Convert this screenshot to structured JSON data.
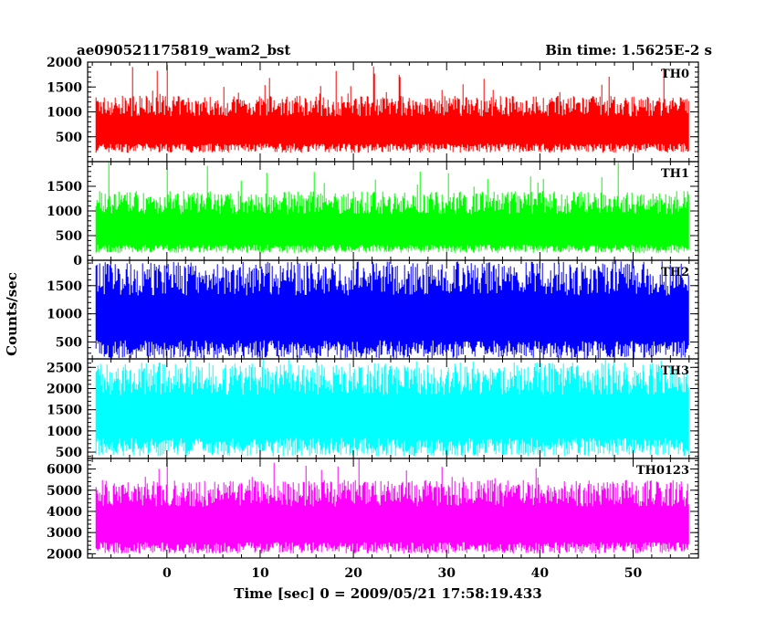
{
  "header": {
    "left_title": "ae090521175819_wam2_bst",
    "right_title": "Bin time: 1.5625E-2 s"
  },
  "axes": {
    "xlabel": "Time [sec] 0 = 2009/05/21 17:58:19.433",
    "ylabel": "Counts/sec",
    "xlim": [
      -8.5,
      57.0
    ],
    "xticks": [
      "0",
      "10",
      "20",
      "30",
      "40",
      "50"
    ]
  },
  "chart_data": [
    {
      "type": "line",
      "name": "TH0",
      "color": "#ff0000",
      "ylim": [
        0,
        2000
      ],
      "yticks": [
        "500",
        "1000",
        "1500",
        "2000"
      ],
      "x_range": [
        -7.6,
        56.0
      ],
      "baseline": 180,
      "typical_low": 350,
      "typical_high": 1100,
      "max": 1950,
      "spikes": [
        {
          "x": 0.0,
          "y": 1950
        },
        {
          "x": 25.0,
          "y": 1700
        }
      ]
    },
    {
      "type": "line",
      "name": "TH1",
      "color": "#00ff00",
      "ylim": [
        0,
        2000
      ],
      "yticks": [
        "0",
        "500",
        "1000",
        "1500"
      ],
      "x_range": [
        -7.6,
        56.0
      ],
      "baseline": 150,
      "typical_low": 300,
      "typical_high": 1150,
      "max": 2000,
      "spikes": [
        {
          "x": 0.0,
          "y": 2000
        },
        {
          "x": 39.0,
          "y": 1700
        }
      ]
    },
    {
      "type": "line",
      "name": "TH2",
      "color": "#0000ff",
      "ylim": [
        200,
        1950
      ],
      "yticks": [
        "500",
        "1000",
        "1500"
      ],
      "x_range": [
        -7.6,
        56.0
      ],
      "baseline": 200,
      "typical_low": 500,
      "typical_high": 1600,
      "max": 1900,
      "spikes": []
    },
    {
      "type": "line",
      "name": "TH3",
      "color": "#00ffff",
      "ylim": [
        350,
        2700
      ],
      "yticks": [
        "500",
        "1000",
        "1500",
        "2000",
        "2500"
      ],
      "x_range": [
        -7.6,
        56.0
      ],
      "baseline": 400,
      "typical_low": 800,
      "typical_high": 2200,
      "max": 2700,
      "spikes": []
    },
    {
      "type": "line",
      "name": "TH0123",
      "color": "#ff00ff",
      "ylim": [
        1800,
        6500
      ],
      "yticks": [
        "2000",
        "3000",
        "4000",
        "5000",
        "6000"
      ],
      "x_range": [
        -7.6,
        56.0
      ],
      "baseline": 2000,
      "typical_low": 2500,
      "typical_high": 4800,
      "max": 6500,
      "spikes": [
        {
          "x": 0.0,
          "y": 6500
        },
        {
          "x": 11.5,
          "y": 6300
        },
        {
          "x": 29.5,
          "y": 6100
        }
      ]
    }
  ]
}
